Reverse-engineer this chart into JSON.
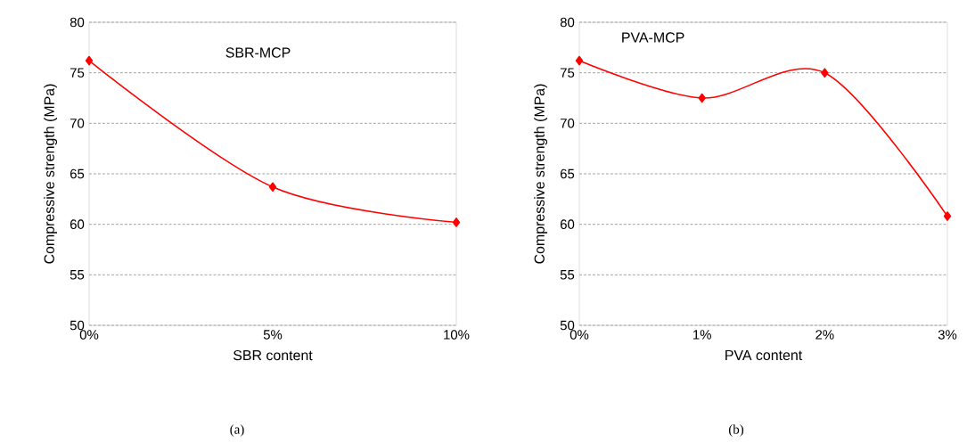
{
  "chart_data": [
    {
      "type": "line",
      "title": "SBR-MCP",
      "xlabel": "SBR content",
      "ylabel": "Compressive strength  (MPa)",
      "categories": [
        "0%",
        "5%",
        "10%"
      ],
      "series": [
        {
          "color": "#ff0000",
          "values": [
            76.2,
            63.7,
            60.2
          ]
        }
      ],
      "ylim": [
        50,
        80
      ],
      "yticks": [
        50,
        55,
        60,
        65,
        70,
        75,
        80
      ],
      "grid": "y",
      "marker": "diamond",
      "annotations": [
        "(a)"
      ]
    },
    {
      "type": "line",
      "title": "PVA-MCP",
      "xlabel": "PVA content",
      "ylabel": "Compressive strength (MPa)",
      "categories": [
        "0%",
        "1%",
        "2%",
        "3%"
      ],
      "series": [
        {
          "color": "#ff0000",
          "values": [
            76.2,
            72.5,
            75.0,
            60.8
          ]
        }
      ],
      "ylim": [
        50,
        80
      ],
      "yticks": [
        50,
        55,
        60,
        65,
        70,
        75,
        80
      ],
      "grid": "y",
      "marker": "diamond",
      "annotations": [
        "(b)"
      ]
    }
  ]
}
